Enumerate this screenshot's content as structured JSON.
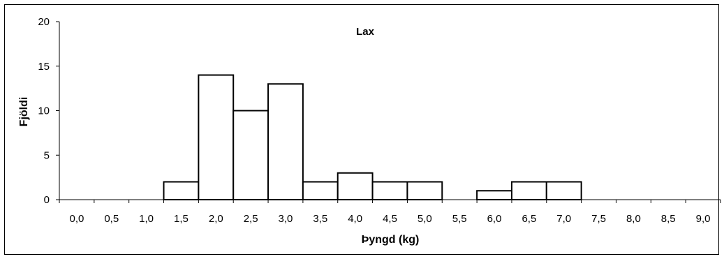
{
  "chart_data": {
    "type": "bar",
    "title": "Lax",
    "xlabel": "Þyngd (kg)",
    "ylabel": "Fjöldi",
    "categories": [
      "0,0",
      "0,5",
      "1,0",
      "1,5",
      "2,0",
      "2,5",
      "3,0",
      "3,5",
      "4,0",
      "4,5",
      "5,0",
      "5,5",
      "6,0",
      "6,5",
      "7,0",
      "7,5",
      "8,0",
      "8,5",
      "9,0"
    ],
    "values": [
      0,
      0,
      0,
      2,
      14,
      10,
      13,
      2,
      3,
      2,
      2,
      0,
      1,
      2,
      2,
      0,
      0,
      0,
      0
    ],
    "ylim": [
      0,
      20
    ],
    "yticks": [
      0,
      5,
      10,
      15,
      20
    ],
    "grid": false,
    "bar_fill": "#ffffff",
    "bar_stroke": "#000000"
  }
}
